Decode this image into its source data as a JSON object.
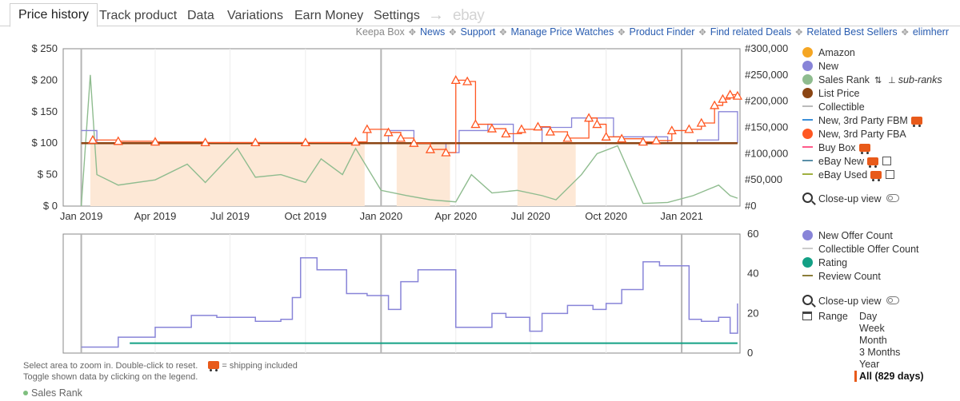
{
  "tabs": [
    {
      "label": "Price history",
      "active": true
    },
    {
      "label": "Track product"
    },
    {
      "label": "Data"
    },
    {
      "label": "Variations"
    },
    {
      "label": "Earn Money"
    },
    {
      "label": "Settings"
    }
  ],
  "tab_arrow": "→",
  "tab_ebay": "ebay",
  "links": {
    "keepa_box": "Keepa Box",
    "items": [
      "News",
      "Support",
      "Manage Price Watches",
      "Product Finder",
      "Find related Deals",
      "Related Best Sellers",
      "elimherr"
    ]
  },
  "legend_top": {
    "items": [
      {
        "label": "Amazon",
        "color": "#f5a623",
        "kind": "dot"
      },
      {
        "label": "New",
        "color": "#8884d8",
        "kind": "dot"
      },
      {
        "label": "Sales Rank",
        "color": "#8fbc8f",
        "kind": "dot"
      },
      {
        "label": "List Price",
        "color": "#8b4513",
        "kind": "dot"
      },
      {
        "label": "Collectible",
        "color": "#bbbbbb",
        "kind": "dash"
      },
      {
        "label": "New, 3rd Party FBM",
        "color": "#3b8fd8",
        "kind": "dash"
      },
      {
        "label": "New, 3rd Party FBA",
        "color": "#ff5722",
        "kind": "dot"
      },
      {
        "label": "Buy Box",
        "color": "#ff5a8a",
        "kind": "dash"
      },
      {
        "label": "eBay New",
        "color": "#5a8fa8",
        "kind": "dash"
      },
      {
        "label": "eBay Used",
        "color": "#a0b040",
        "kind": "dash"
      }
    ],
    "sub_ranks": "sub-ranks",
    "closeup": "Close-up view"
  },
  "legend_bottom": {
    "items": [
      {
        "label": "New Offer Count",
        "color": "#8884d8",
        "kind": "dot"
      },
      {
        "label": "Collectible Offer Count",
        "color": "#cccccc",
        "kind": "dash"
      },
      {
        "label": "Rating",
        "color": "#13a085",
        "kind": "dot"
      },
      {
        "label": "Review Count",
        "color": "#8b7d3a",
        "kind": "dash"
      }
    ],
    "closeup": "Close-up view",
    "range_label": "Range",
    "range_options": [
      "Day",
      "Week",
      "Month",
      "3 Months",
      "Year",
      "All (829 days)"
    ],
    "range_selected": "All (829 days)"
  },
  "hints": {
    "line1": "Select area to zoom in. Double-click to reset.",
    "shipping": "= shipping included",
    "line2": "Toggle shown data by clicking on the legend."
  },
  "bottom_legend": "Sales Rank",
  "chart_data": [
    {
      "type": "line",
      "x_ticks": [
        "Jan 2019",
        "Apr 2019",
        "Jul 2019",
        "Oct 2019",
        "Jan 2020",
        "Apr 2020",
        "Jul 2020",
        "Oct 2020",
        "Jan 2021"
      ],
      "y_left_ticks": [
        "$ 0",
        "$ 50",
        "$ 100",
        "$ 150",
        "$ 200",
        "$ 250"
      ],
      "y_left_range": [
        0,
        250
      ],
      "y_right_ticks": [
        "#0",
        "#50,000",
        "#100,000",
        "#150,000",
        "#200,000",
        "#250,000",
        "#300,000"
      ],
      "y_right_range": [
        0,
        300000
      ],
      "series": [
        {
          "name": "List Price",
          "color": "#8b4513",
          "x": [
            "2019-01-01",
            "2021-03-10"
          ],
          "values": [
            100,
            100
          ]
        },
        {
          "name": "New, 3rd Party FBA",
          "color": "#ff5722",
          "marker": "triangle",
          "x": [
            "2019-01-15",
            "2019-02-15",
            "2019-04-01",
            "2019-06-01",
            "2019-08-01",
            "2019-10-01",
            "2019-12-01",
            "2019-12-15",
            "2020-01-10",
            "2020-01-25",
            "2020-02-10",
            "2020-03-01",
            "2020-03-20",
            "2020-04-01",
            "2020-04-15",
            "2020-04-25",
            "2020-05-15",
            "2020-06-01",
            "2020-06-20",
            "2020-07-10",
            "2020-07-25",
            "2020-08-15",
            "2020-09-10",
            "2020-09-20",
            "2020-10-01",
            "2020-10-20",
            "2020-11-15",
            "2020-12-01",
            "2020-12-20",
            "2021-01-10",
            "2021-01-25",
            "2021-02-10",
            "2021-02-20",
            "2021-03-01",
            "2021-03-10"
          ],
          "values": [
            105,
            103,
            102,
            101,
            101,
            101,
            102,
            122,
            117,
            108,
            100,
            90,
            85,
            200,
            198,
            130,
            123,
            115,
            122,
            126,
            118,
            108,
            140,
            130,
            110,
            107,
            102,
            104,
            120,
            122,
            132,
            160,
            170,
            177,
            175
          ]
        },
        {
          "name": "New",
          "color": "#8884d8",
          "x": [
            "2019-01-01",
            "2019-01-20",
            "2019-12-10",
            "2020-01-10",
            "2020-02-10",
            "2020-03-20",
            "2020-04-05",
            "2020-05-10",
            "2020-06-10",
            "2020-07-15",
            "2020-08-20",
            "2020-10-10",
            "2020-12-15",
            "2021-01-20",
            "2021-02-15",
            "2021-03-10"
          ],
          "values": [
            120,
            100,
            100,
            120,
            100,
            85,
            120,
            130,
            100,
            125,
            140,
            110,
            100,
            105,
            150,
            100
          ]
        },
        {
          "name": "Sales Rank",
          "color": "#8fbc8f",
          "axis": "right",
          "x": [
            "2019-01-01",
            "2019-01-12",
            "2019-01-20",
            "2019-02-15",
            "2019-04-01",
            "2019-05-10",
            "2019-06-01",
            "2019-07-10",
            "2019-08-01",
            "2019-09-01",
            "2019-10-01",
            "2019-10-20",
            "2019-11-15",
            "2019-12-01",
            "2020-01-01",
            "2020-02-01",
            "2020-03-01",
            "2020-04-01",
            "2020-04-20",
            "2020-05-15",
            "2020-06-15",
            "2020-07-15",
            "2020-08-01",
            "2020-09-01",
            "2020-09-20",
            "2020-10-15",
            "2020-11-15",
            "2020-12-15",
            "2021-01-15",
            "2021-02-15",
            "2021-03-01",
            "2021-03-10"
          ],
          "values": [
            0,
            250000,
            60000,
            40000,
            50000,
            80000,
            45000,
            110000,
            55000,
            60000,
            45000,
            90000,
            60000,
            110000,
            30000,
            20000,
            12000,
            8000,
            60000,
            25000,
            30000,
            20000,
            12000,
            60000,
            100000,
            115000,
            5000,
            7000,
            20000,
            40000,
            20000,
            15000
          ]
        }
      ]
    },
    {
      "type": "line",
      "y_right_ticks": [
        "0",
        "20",
        "40",
        "60"
      ],
      "y_right_range": [
        0,
        60
      ],
      "series": [
        {
          "name": "New Offer Count",
          "color": "#8884d8",
          "x": [
            "2019-01-01",
            "2019-02-15",
            "2019-04-01",
            "2019-05-15",
            "2019-06-15",
            "2019-08-01",
            "2019-09-01",
            "2019-09-15",
            "2019-09-25",
            "2019-10-15",
            "2019-11-20",
            "2019-12-15",
            "2020-01-10",
            "2020-01-25",
            "2020-02-15",
            "2020-03-20",
            "2020-04-01",
            "2020-05-15",
            "2020-06-01",
            "2020-06-30",
            "2020-07-15",
            "2020-08-15",
            "2020-09-15",
            "2020-10-01",
            "2020-10-20",
            "2020-11-15",
            "2020-12-05",
            "2021-01-10",
            "2021-01-25",
            "2021-02-15",
            "2021-03-01",
            "2021-03-10"
          ],
          "values": [
            3,
            8,
            13,
            19,
            18,
            16,
            17,
            28,
            48,
            42,
            30,
            29,
            22,
            36,
            42,
            42,
            13,
            20,
            18,
            11,
            20,
            24,
            22,
            25,
            32,
            46,
            44,
            17,
            16,
            18,
            10,
            25
          ]
        },
        {
          "name": "Rating",
          "color": "#13a085",
          "x": [
            "2019-03-01",
            "2021-03-10"
          ],
          "values": [
            5,
            5
          ]
        }
      ]
    }
  ]
}
